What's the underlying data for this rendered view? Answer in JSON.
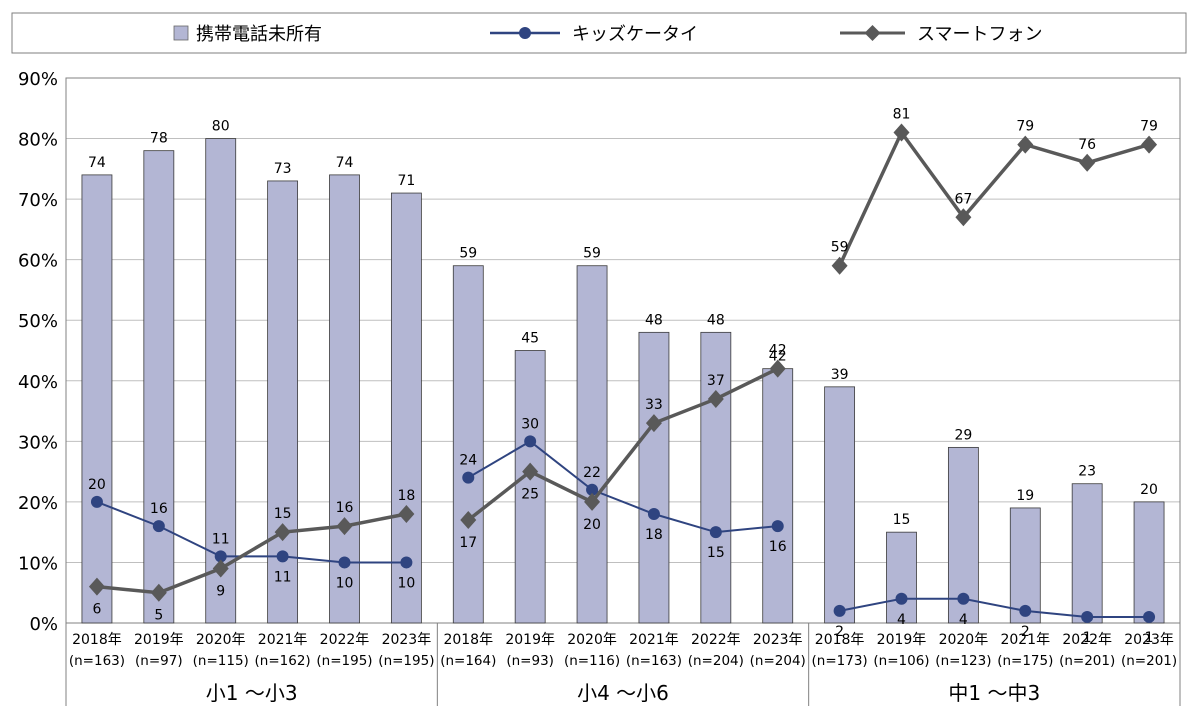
{
  "chart_data": {
    "type": "bar",
    "title": "",
    "xlabel": "",
    "ylabel": "",
    "ylim": [
      0,
      90
    ],
    "y_ticks": [
      0,
      10,
      20,
      30,
      40,
      50,
      60,
      70,
      80,
      90
    ],
    "y_tick_labels": [
      "0%",
      "10%",
      "20%",
      "30%",
      "40%",
      "50%",
      "60%",
      "70%",
      "80%",
      "90%"
    ],
    "grid": true,
    "legend_position": "top",
    "groups": [
      "小1 ～小3",
      "小4 ～小6",
      "中1 ～中3"
    ],
    "years": [
      "2018年",
      "2019年",
      "2020年",
      "2021年",
      "2022年",
      "2023年"
    ],
    "sample_sizes": [
      [
        "(n=163)",
        "(n=97)",
        "(n=115)",
        "(n=162)",
        "(n=195)",
        "(n=195)"
      ],
      [
        "(n=164)",
        "(n=93)",
        "(n=116)",
        "(n=163)",
        "(n=204)",
        "(n=204)"
      ],
      [
        "(n=173)",
        "(n=106)",
        "(n=123)",
        "(n=175)",
        "(n=201)",
        "(n=201)"
      ]
    ],
    "series": [
      {
        "name": "携帯電話未所有",
        "kind": "bar",
        "color": "#b3b6d4",
        "values": [
          [
            74,
            78,
            80,
            73,
            74,
            71
          ],
          [
            59,
            45,
            59,
            48,
            48,
            42
          ],
          [
            39,
            15,
            29,
            19,
            23,
            20
          ]
        ]
      },
      {
        "name": "キッズケータイ",
        "kind": "line",
        "marker": "circle",
        "color": "#2f4480",
        "values": [
          [
            20,
            16,
            11,
            11,
            10,
            10
          ],
          [
            24,
            30,
            22,
            18,
            15,
            16
          ],
          [
            2,
            4,
            4,
            2,
            1,
            1
          ]
        ]
      },
      {
        "name": "スマートフォン",
        "kind": "line",
        "marker": "diamond",
        "color": "#595959",
        "values": [
          [
            6,
            5,
            9,
            15,
            16,
            18
          ],
          [
            17,
            25,
            20,
            33,
            37,
            42
          ],
          [
            59,
            81,
            67,
            79,
            76,
            79
          ]
        ]
      }
    ]
  }
}
